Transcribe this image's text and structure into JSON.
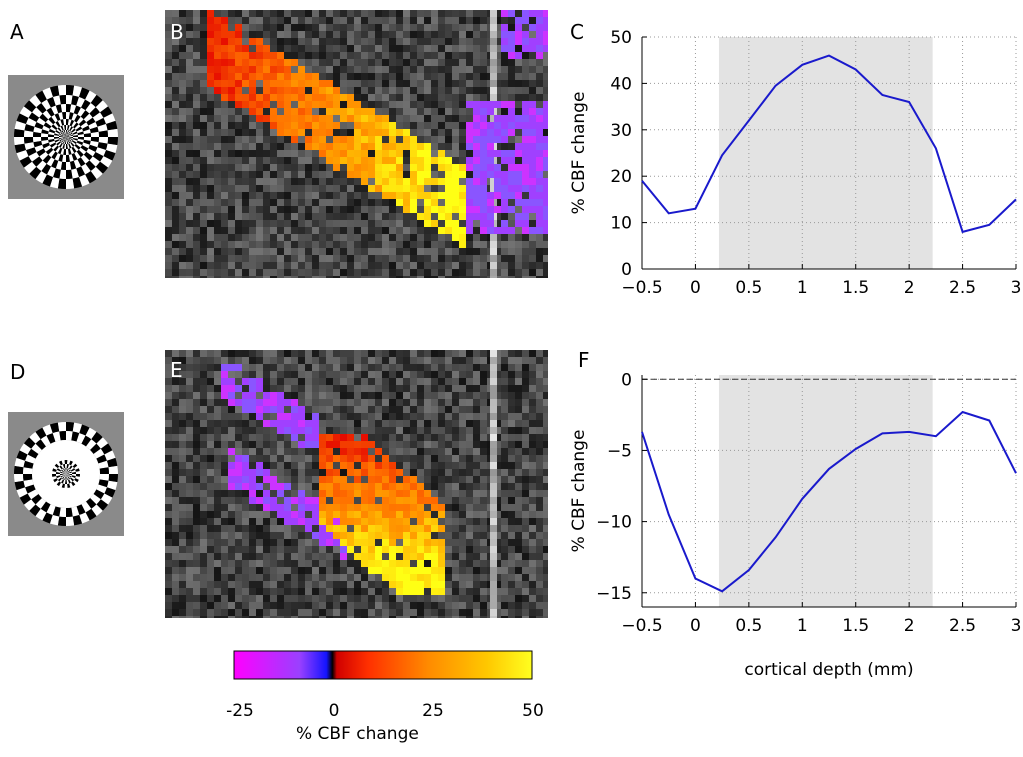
{
  "panel_labels": {
    "a": "A",
    "b": "B",
    "c": "C",
    "d": "D",
    "e": "E",
    "f": "F"
  },
  "colorbar": {
    "ticks": [
      "-25",
      "0",
      "25",
      "50"
    ],
    "label": "% CBF change",
    "colors": [
      "#ff00ff",
      "#8a4dff",
      "#1010ff",
      "#000000",
      "#ff1a00",
      "#ff7a00",
      "#ffb000",
      "#ffff00"
    ]
  },
  "chart_data": [
    {
      "type": "line",
      "panel": "C",
      "ylabel": "% CBF change",
      "xlabel": "",
      "xlim": [
        -0.5,
        3
      ],
      "ylim": [
        0,
        50
      ],
      "xticks": [
        "-0.5",
        "0",
        "0.5",
        "1",
        "1.5",
        "2",
        "2.5",
        "3"
      ],
      "yticks": [
        "0",
        "10",
        "20",
        "30",
        "40",
        "50"
      ],
      "shaded_x_range": [
        0.22,
        2.22
      ],
      "grid": true,
      "series": [
        {
          "color": "#1a1acc",
          "x": [
            -0.5,
            -0.25,
            0,
            0.25,
            0.5,
            0.75,
            1,
            1.25,
            1.5,
            1.75,
            2,
            2.25,
            2.5,
            2.75,
            3
          ],
          "y": [
            19,
            12,
            13,
            24.5,
            32,
            39.5,
            44,
            46,
            43,
            37.5,
            36,
            26,
            8,
            9.5,
            15
          ]
        }
      ]
    },
    {
      "type": "line",
      "panel": "F",
      "ylabel": "% CBF change",
      "xlabel": "cortical depth (mm)",
      "xlim": [
        -0.5,
        3
      ],
      "ylim": [
        -16,
        0.3
      ],
      "xticks": [
        "-0.5",
        "0",
        "0.5",
        "1",
        "1.5",
        "2",
        "2.5",
        "3"
      ],
      "yticks": [
        "-15",
        "-10",
        "-5",
        "0"
      ],
      "zero_line": true,
      "shaded_x_range": [
        0.22,
        2.22
      ],
      "grid": true,
      "series": [
        {
          "color": "#1a1acc",
          "x": [
            -0.5,
            -0.25,
            0,
            0.25,
            0.5,
            0.75,
            1,
            1.25,
            1.5,
            1.75,
            2,
            2.25,
            2.5,
            2.75,
            3
          ],
          "y": [
            -3.7,
            -9.5,
            -14,
            -14.9,
            -13.4,
            -11.1,
            -8.4,
            -6.3,
            -4.9,
            -3.8,
            -3.7,
            -4,
            -2.3,
            -2.9,
            -6.6
          ]
        }
      ]
    }
  ]
}
